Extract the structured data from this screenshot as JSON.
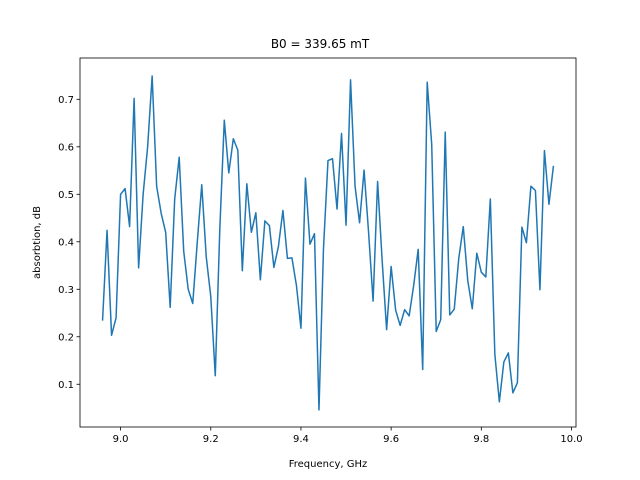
{
  "chart_data": {
    "type": "line",
    "title": "B0 = 339.65 mT",
    "xlabel": "Frequency, GHz",
    "ylabel": "absorbtion, dB",
    "xlim": [
      8.91,
      10.01
    ],
    "ylim": [
      0.01,
      0.787
    ],
    "xticks": [
      9.0,
      9.2,
      9.4,
      9.6,
      9.8,
      10.0
    ],
    "xtick_labels": [
      "9.0",
      "9.2",
      "9.4",
      "9.6",
      "9.8",
      "10.0"
    ],
    "yticks": [
      0.1,
      0.2,
      0.3,
      0.4,
      0.5,
      0.6,
      0.7
    ],
    "ytick_labels": [
      "0.1",
      "0.2",
      "0.3",
      "0.4",
      "0.5",
      "0.6",
      "0.7"
    ],
    "grid": false,
    "color": "#1f77b4",
    "series": [
      {
        "x": [
          8.96,
          8.97,
          8.98,
          8.99,
          9.0,
          9.01,
          9.02,
          9.03,
          9.04,
          9.05,
          9.06,
          9.07,
          9.08,
          9.09,
          9.1,
          9.11,
          9.12,
          9.13,
          9.14,
          9.15,
          9.16,
          9.17,
          9.18,
          9.19,
          9.2,
          9.21,
          9.22,
          9.23,
          9.24,
          9.25,
          9.26,
          9.27,
          9.28,
          9.29,
          9.3,
          9.31,
          9.32,
          9.33,
          9.34,
          9.35,
          9.36,
          9.37,
          9.38,
          9.39,
          9.4,
          9.41,
          9.42,
          9.43,
          9.44,
          9.45,
          9.46,
          9.47,
          9.48,
          9.49,
          9.5,
          9.51,
          9.52,
          9.53,
          9.54,
          9.55,
          9.56,
          9.57,
          9.58,
          9.59,
          9.6,
          9.61,
          9.62,
          9.63,
          9.64,
          9.65,
          9.66,
          9.67,
          9.68,
          9.69,
          9.7,
          9.71,
          9.72,
          9.73,
          9.74,
          9.75,
          9.76,
          9.77,
          9.78,
          9.79,
          9.8,
          9.81,
          9.82,
          9.83,
          9.84,
          9.85,
          9.86,
          9.87,
          9.88,
          9.89,
          9.9,
          9.91,
          9.92,
          9.93,
          9.94,
          9.95,
          9.96
        ],
        "y": [
          0.234,
          0.424,
          0.203,
          0.24,
          0.5,
          0.512,
          0.432,
          0.702,
          0.345,
          0.5,
          0.6,
          0.749,
          0.517,
          0.46,
          0.42,
          0.262,
          0.49,
          0.578,
          0.38,
          0.3,
          0.27,
          0.398,
          0.52,
          0.368,
          0.285,
          0.118,
          0.425,
          0.656,
          0.545,
          0.617,
          0.593,
          0.339,
          0.522,
          0.42,
          0.461,
          0.32,
          0.444,
          0.434,
          0.346,
          0.39,
          0.466,
          0.365,
          0.366,
          0.308,
          0.218,
          0.534,
          0.395,
          0.417,
          0.046,
          0.386,
          0.571,
          0.575,
          0.469,
          0.628,
          0.435,
          0.741,
          0.517,
          0.44,
          0.551,
          0.42,
          0.275,
          0.527,
          0.362,
          0.215,
          0.348,
          0.256,
          0.224,
          0.257,
          0.244,
          0.308,
          0.384,
          0.131,
          0.736,
          0.605,
          0.211,
          0.236,
          0.631,
          0.246,
          0.258,
          0.365,
          0.432,
          0.318,
          0.259,
          0.376,
          0.336,
          0.326,
          0.49,
          0.163,
          0.063,
          0.147,
          0.166,
          0.082,
          0.103,
          0.431,
          0.398,
          0.517,
          0.508,
          0.299,
          0.592,
          0.479,
          0.56
        ]
      }
    ]
  }
}
